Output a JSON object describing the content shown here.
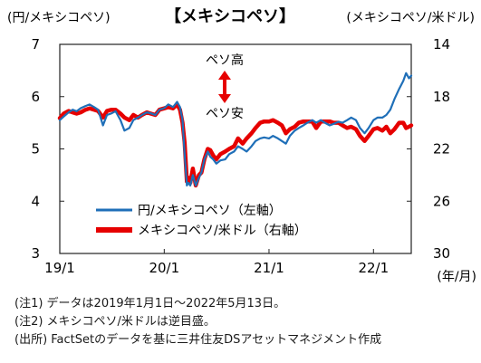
{
  "chart_data": {
    "type": "line",
    "title": "【メキシコペソ】",
    "left_axis_label": "(円/メキシコペソ)",
    "right_axis_label": "(メキシコペソ/米ドル)",
    "x_unit_label": "(年/月)",
    "x_tick_labels": [
      "19/1",
      "20/1",
      "21/1",
      "22/1"
    ],
    "x_range": [
      "2019-01-01",
      "2022-05-13"
    ],
    "y_left": {
      "range": [
        3,
        7
      ],
      "ticks": [
        3,
        4,
        5,
        6,
        7
      ],
      "tick_labels": [
        "3",
        "4",
        "5",
        "6",
        "7"
      ]
    },
    "y_right": {
      "range": [
        14,
        30
      ],
      "inverted": true,
      "ticks": [
        14,
        18,
        22,
        26,
        30
      ],
      "tick_labels": [
        "14",
        "18",
        "22",
        "26",
        "30"
      ]
    },
    "annotation": {
      "up_label": "ペソ高",
      "down_label": "ペソ安",
      "arrow_color": "#e60000"
    },
    "grid": false,
    "legend_position": "bottom-left",
    "series": [
      {
        "name": "円/メキシコペソ（左軸）",
        "axis": "left",
        "color": "#1f6fb8",
        "points": [
          [
            "2019-01-01",
            5.55
          ],
          [
            "2019-01-15",
            5.62
          ],
          [
            "2019-02-01",
            5.7
          ],
          [
            "2019-02-15",
            5.75
          ],
          [
            "2019-03-01",
            5.72
          ],
          [
            "2019-03-15",
            5.78
          ],
          [
            "2019-04-01",
            5.82
          ],
          [
            "2019-04-15",
            5.85
          ],
          [
            "2019-05-01",
            5.8
          ],
          [
            "2019-05-15",
            5.75
          ],
          [
            "2019-06-01",
            5.45
          ],
          [
            "2019-06-15",
            5.65
          ],
          [
            "2019-07-01",
            5.68
          ],
          [
            "2019-07-15",
            5.72
          ],
          [
            "2019-08-01",
            5.55
          ],
          [
            "2019-08-15",
            5.35
          ],
          [
            "2019-09-01",
            5.4
          ],
          [
            "2019-09-15",
            5.55
          ],
          [
            "2019-10-01",
            5.6
          ],
          [
            "2019-10-15",
            5.65
          ],
          [
            "2019-11-01",
            5.7
          ],
          [
            "2019-11-15",
            5.68
          ],
          [
            "2019-12-01",
            5.65
          ],
          [
            "2019-12-15",
            5.75
          ],
          [
            "2020-01-01",
            5.78
          ],
          [
            "2020-01-15",
            5.85
          ],
          [
            "2020-02-01",
            5.8
          ],
          [
            "2020-02-15",
            5.9
          ],
          [
            "2020-02-25",
            5.8
          ],
          [
            "2020-03-05",
            5.55
          ],
          [
            "2020-03-12",
            4.9
          ],
          [
            "2020-03-20",
            4.3
          ],
          [
            "2020-03-25",
            4.35
          ],
          [
            "2020-04-01",
            4.3
          ],
          [
            "2020-04-10",
            4.5
          ],
          [
            "2020-04-20",
            4.3
          ],
          [
            "2020-05-01",
            4.45
          ],
          [
            "2020-05-10",
            4.55
          ],
          [
            "2020-05-20",
            4.8
          ],
          [
            "2020-06-01",
            4.95
          ],
          [
            "2020-06-10",
            4.85
          ],
          [
            "2020-06-20",
            4.8
          ],
          [
            "2020-07-01",
            4.72
          ],
          [
            "2020-07-15",
            4.78
          ],
          [
            "2020-08-01",
            4.8
          ],
          [
            "2020-08-15",
            4.9
          ],
          [
            "2020-09-01",
            4.95
          ],
          [
            "2020-09-15",
            5.05
          ],
          [
            "2020-10-01",
            5.0
          ],
          [
            "2020-10-15",
            4.95
          ],
          [
            "2020-11-01",
            5.05
          ],
          [
            "2020-11-15",
            5.15
          ],
          [
            "2020-12-01",
            5.2
          ],
          [
            "2020-12-15",
            5.22
          ],
          [
            "2021-01-01",
            5.2
          ],
          [
            "2021-01-15",
            5.25
          ],
          [
            "2021-02-01",
            5.2
          ],
          [
            "2021-02-15",
            5.15
          ],
          [
            "2021-03-01",
            5.1
          ],
          [
            "2021-03-15",
            5.25
          ],
          [
            "2021-04-01",
            5.35
          ],
          [
            "2021-04-15",
            5.4
          ],
          [
            "2021-05-01",
            5.45
          ],
          [
            "2021-05-15",
            5.5
          ],
          [
            "2021-06-01",
            5.55
          ],
          [
            "2021-06-15",
            5.5
          ],
          [
            "2021-07-01",
            5.55
          ],
          [
            "2021-07-15",
            5.5
          ],
          [
            "2021-08-01",
            5.45
          ],
          [
            "2021-08-15",
            5.48
          ],
          [
            "2021-09-01",
            5.52
          ],
          [
            "2021-09-15",
            5.5
          ],
          [
            "2021-10-01",
            5.55
          ],
          [
            "2021-10-15",
            5.6
          ],
          [
            "2021-11-01",
            5.55
          ],
          [
            "2021-11-15",
            5.4
          ],
          [
            "2021-12-01",
            5.3
          ],
          [
            "2021-12-15",
            5.4
          ],
          [
            "2022-01-01",
            5.55
          ],
          [
            "2022-01-15",
            5.6
          ],
          [
            "2022-02-01",
            5.6
          ],
          [
            "2022-02-15",
            5.65
          ],
          [
            "2022-03-01",
            5.75
          ],
          [
            "2022-03-15",
            5.95
          ],
          [
            "2022-04-01",
            6.15
          ],
          [
            "2022-04-15",
            6.3
          ],
          [
            "2022-04-25",
            6.45
          ],
          [
            "2022-05-05",
            6.35
          ],
          [
            "2022-05-13",
            6.4
          ]
        ]
      },
      {
        "name": "メキシコペソ/米ドル（右軸）",
        "axis": "right",
        "color": "#e60000",
        "points": [
          [
            "2019-01-01",
            19.65
          ],
          [
            "2019-01-15",
            19.3
          ],
          [
            "2019-02-01",
            19.1
          ],
          [
            "2019-02-15",
            19.2
          ],
          [
            "2019-03-01",
            19.3
          ],
          [
            "2019-03-15",
            19.2
          ],
          [
            "2019-04-01",
            19.0
          ],
          [
            "2019-04-15",
            18.9
          ],
          [
            "2019-05-01",
            19.0
          ],
          [
            "2019-05-15",
            19.1
          ],
          [
            "2019-06-01",
            19.6
          ],
          [
            "2019-06-15",
            19.1
          ],
          [
            "2019-07-01",
            19.0
          ],
          [
            "2019-07-15",
            19.0
          ],
          [
            "2019-08-01",
            19.3
          ],
          [
            "2019-08-15",
            19.6
          ],
          [
            "2019-09-01",
            19.8
          ],
          [
            "2019-09-15",
            19.4
          ],
          [
            "2019-10-01",
            19.6
          ],
          [
            "2019-10-15",
            19.4
          ],
          [
            "2019-11-01",
            19.2
          ],
          [
            "2019-11-15",
            19.3
          ],
          [
            "2019-12-01",
            19.4
          ],
          [
            "2019-12-15",
            19.0
          ],
          [
            "2020-01-01",
            18.9
          ],
          [
            "2020-01-15",
            18.8
          ],
          [
            "2020-02-01",
            18.9
          ],
          [
            "2020-02-15",
            18.6
          ],
          [
            "2020-02-25",
            19.0
          ],
          [
            "2020-03-05",
            20.0
          ],
          [
            "2020-03-12",
            21.5
          ],
          [
            "2020-03-20",
            24.5
          ],
          [
            "2020-03-25",
            24.2
          ],
          [
            "2020-04-01",
            24.6
          ],
          [
            "2020-04-10",
            23.5
          ],
          [
            "2020-04-20",
            24.8
          ],
          [
            "2020-05-01",
            24.0
          ],
          [
            "2020-05-10",
            23.8
          ],
          [
            "2020-05-20",
            22.8
          ],
          [
            "2020-06-01",
            22.0
          ],
          [
            "2020-06-10",
            22.1
          ],
          [
            "2020-06-20",
            22.5
          ],
          [
            "2020-07-01",
            22.8
          ],
          [
            "2020-07-15",
            22.4
          ],
          [
            "2020-08-01",
            22.2
          ],
          [
            "2020-08-15",
            22.0
          ],
          [
            "2020-09-01",
            21.8
          ],
          [
            "2020-09-15",
            21.2
          ],
          [
            "2020-10-01",
            21.6
          ],
          [
            "2020-10-15",
            21.2
          ],
          [
            "2020-11-01",
            20.8
          ],
          [
            "2020-11-15",
            20.4
          ],
          [
            "2020-12-01",
            20.0
          ],
          [
            "2020-12-15",
            19.9
          ],
          [
            "2021-01-01",
            19.9
          ],
          [
            "2021-01-15",
            19.8
          ],
          [
            "2021-02-01",
            20.0
          ],
          [
            "2021-02-15",
            20.2
          ],
          [
            "2021-03-01",
            20.8
          ],
          [
            "2021-03-15",
            20.5
          ],
          [
            "2021-04-01",
            20.3
          ],
          [
            "2021-04-15",
            20.0
          ],
          [
            "2021-05-01",
            19.9
          ],
          [
            "2021-05-15",
            19.9
          ],
          [
            "2021-06-01",
            19.9
          ],
          [
            "2021-06-15",
            20.4
          ],
          [
            "2021-07-01",
            19.9
          ],
          [
            "2021-07-15",
            19.9
          ],
          [
            "2021-08-01",
            19.9
          ],
          [
            "2021-08-15",
            20.0
          ],
          [
            "2021-09-01",
            20.0
          ],
          [
            "2021-09-15",
            20.2
          ],
          [
            "2021-10-01",
            20.4
          ],
          [
            "2021-10-15",
            20.3
          ],
          [
            "2021-11-01",
            20.5
          ],
          [
            "2021-11-15",
            21.0
          ],
          [
            "2021-12-01",
            21.4
          ],
          [
            "2021-12-15",
            21.0
          ],
          [
            "2022-01-01",
            20.5
          ],
          [
            "2022-01-15",
            20.4
          ],
          [
            "2022-02-01",
            20.6
          ],
          [
            "2022-02-15",
            20.3
          ],
          [
            "2022-03-01",
            20.8
          ],
          [
            "2022-03-15",
            20.5
          ],
          [
            "2022-04-01",
            20.0
          ],
          [
            "2022-04-15",
            20.0
          ],
          [
            "2022-04-25",
            20.4
          ],
          [
            "2022-05-05",
            20.3
          ],
          [
            "2022-05-13",
            20.2
          ]
        ]
      }
    ]
  },
  "notes": [
    "(注1) データは2019年1月1日～2022年5月13日。",
    "(注2) メキシコペソ/米ドルは逆目盛。",
    "(出所) FactSetのデータを基に三井住友DSアセットマネジメント作成"
  ]
}
